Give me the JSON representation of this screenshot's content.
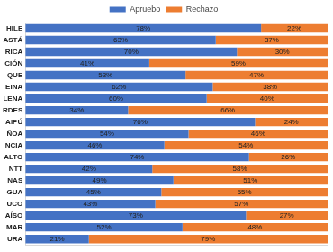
{
  "chart_data": {
    "type": "bar",
    "orientation": "horizontal",
    "stacked": true,
    "data_labels": true,
    "tick_labels": "y",
    "grid": false,
    "legend": "top",
    "categories": [
      "HILE",
      "ASTÁ",
      "RICA",
      "CIÓN",
      "QUE",
      "EINA",
      "LENA",
      "RDES",
      "AIPÚ",
      "ÑOA",
      "NCIA",
      "ALTO",
      "NTT",
      "NAS",
      "GUA",
      "UCO",
      "AÍSO",
      "MAR",
      "URA"
    ],
    "xlim": [
      0,
      100
    ],
    "series": [
      {
        "name": "Apruebo",
        "color": "#4472c4",
        "values": [
          78,
          63,
          70,
          41,
          53,
          62,
          60,
          34,
          76,
          54,
          46,
          74,
          42,
          49,
          45,
          43,
          73,
          52,
          21
        ],
        "value_labels": [
          "78%",
          "63%",
          "70%",
          "41%",
          "53%",
          "62%",
          "60%",
          "34%",
          "76%",
          "54%",
          "46%",
          "74%",
          "42%",
          "49%",
          "45%",
          "43%",
          "73%",
          "52%",
          "21%"
        ]
      },
      {
        "name": "Rechazo",
        "color": "#ed7d31",
        "values": [
          22,
          37,
          30,
          59,
          47,
          38,
          40,
          66,
          24,
          46,
          54,
          26,
          58,
          51,
          55,
          57,
          27,
          48,
          79
        ],
        "value_labels": [
          "22%",
          "37%",
          "30%",
          "59%",
          "47%",
          "38%",
          "40%",
          "66%",
          "24%",
          "46%",
          "54%",
          "26%",
          "58%",
          "51%",
          "55%",
          "57%",
          "27%",
          "48%",
          "79%"
        ]
      }
    ]
  }
}
